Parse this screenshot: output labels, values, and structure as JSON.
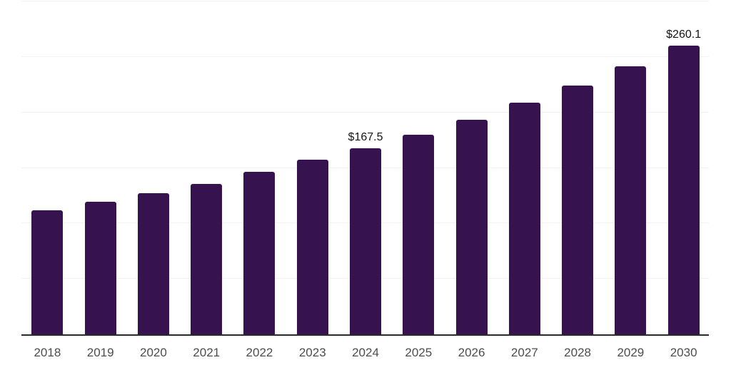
{
  "chart_data": {
    "type": "bar",
    "title": "",
    "xlabel": "",
    "ylabel": "",
    "categories": [
      "2018",
      "2019",
      "2020",
      "2021",
      "2022",
      "2023",
      "2024",
      "2025",
      "2026",
      "2027",
      "2028",
      "2029",
      "2030"
    ],
    "values": [
      111.6,
      119.3,
      127.2,
      135.7,
      146.4,
      157.3,
      167.5,
      180.2,
      193.5,
      208.6,
      224.0,
      241.5,
      260.1
    ],
    "data_labels": [
      "",
      "",
      "",
      "",
      "",
      "",
      "$167.5",
      "",
      "",
      "",
      "",
      "",
      "$260.1"
    ],
    "value_prefix": "$",
    "ylim": [
      0,
      300
    ],
    "gridline_values": [
      50,
      100,
      150,
      200,
      250,
      300
    ],
    "grid": "horizontal-only",
    "legend": "none",
    "y_axis_tick_labels": "none",
    "colors": {
      "bar": "#36134f",
      "axis_line": "#2a2a2a",
      "gridline": "#f2f2f4",
      "tick_label": "#4d4d4d",
      "data_label": "#141414",
      "background": "#ffffff"
    }
  }
}
